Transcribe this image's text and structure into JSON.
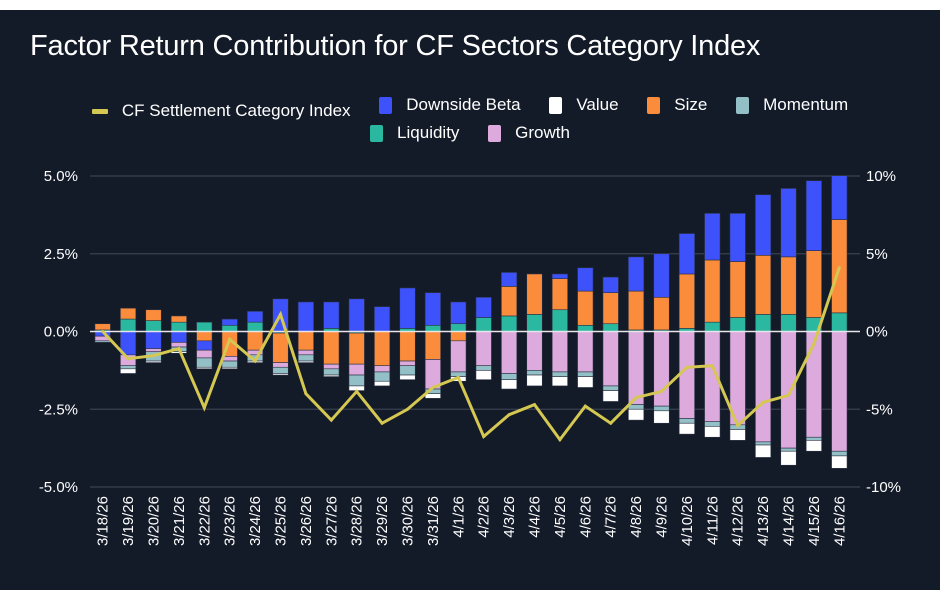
{
  "chart_data": {
    "type": "bar",
    "title": "Factor Return Contribution for CF Sectors Category Index",
    "stacked": true,
    "xlabel": "",
    "ylabel": "",
    "ylim": [
      -5.0,
      5.0
    ],
    "y2lim": [
      -10,
      10
    ],
    "yticks": [
      "5.0%",
      "2.5%",
      "0.0%",
      "-2.5%",
      "-5.0%"
    ],
    "ytick_values": [
      5.0,
      2.5,
      0.0,
      -2.5,
      -5.0
    ],
    "y2ticks": [
      "10%",
      "5%",
      "0%",
      "-5%",
      "-10%"
    ],
    "y2tick_values": [
      10,
      5,
      0,
      -5,
      -10
    ],
    "grid": true,
    "legend_position": "top-center",
    "categories": [
      "3/18/26",
      "3/19/26",
      "3/20/26",
      "3/21/26",
      "3/22/26",
      "3/23/26",
      "3/24/26",
      "3/25/26",
      "3/26/26",
      "3/27/26",
      "3/28/26",
      "3/29/26",
      "3/30/26",
      "3/31/26",
      "4/1/26",
      "4/2/26",
      "4/3/26",
      "4/4/26",
      "4/5/26",
      "4/6/26",
      "4/7/26",
      "4/8/26",
      "4/9/26",
      "4/10/26",
      "4/11/26",
      "4/12/26",
      "4/13/26",
      "4/14/26",
      "4/15/26",
      "4/16/26"
    ],
    "series": [
      {
        "name": "Liquidity",
        "color": "#2ab9a0",
        "values": [
          0.05,
          0.4,
          0.35,
          0.3,
          0.3,
          0.2,
          0.3,
          -0.05,
          0.0,
          0.1,
          -0.05,
          0.0,
          0.1,
          0.2,
          0.25,
          0.45,
          0.5,
          0.55,
          0.7,
          0.2,
          0.25,
          0.05,
          0.05,
          0.1,
          0.3,
          0.45,
          0.55,
          0.55,
          0.45,
          0.6
        ]
      },
      {
        "name": "Size",
        "color": "#fb8c3c",
        "values": [
          0.2,
          0.35,
          0.35,
          0.2,
          -0.3,
          -0.8,
          -0.6,
          -0.95,
          -0.6,
          -1.05,
          -1.0,
          -1.1,
          -0.95,
          -0.9,
          -0.3,
          0.0,
          0.95,
          1.3,
          1.0,
          1.1,
          1.0,
          1.25,
          1.05,
          1.75,
          2.0,
          1.8,
          1.9,
          1.85,
          2.15,
          3.0
        ]
      },
      {
        "name": "Downside Beta",
        "color": "#3d52fa",
        "values": [
          -0.15,
          -0.75,
          -0.55,
          -0.35,
          -0.3,
          0.2,
          0.35,
          1.05,
          0.95,
          0.85,
          1.05,
          0.8,
          1.3,
          1.05,
          0.7,
          0.65,
          0.45,
          0.0,
          0.15,
          0.75,
          0.5,
          1.1,
          1.4,
          1.3,
          1.5,
          1.55,
          1.95,
          2.2,
          2.25,
          2.4
        ]
      },
      {
        "name": "Growth",
        "color": "#dcaadc",
        "values": [
          -0.15,
          -0.35,
          -0.1,
          -0.15,
          -0.25,
          -0.15,
          -0.15,
          -0.15,
          -0.15,
          -0.15,
          -0.35,
          -0.2,
          -0.15,
          -0.95,
          -1.0,
          -1.1,
          -1.35,
          -1.25,
          -1.3,
          -1.3,
          -1.75,
          -2.35,
          -2.4,
          -2.8,
          -2.9,
          -3.0,
          -3.55,
          -3.75,
          -3.4,
          -3.85
        ]
      },
      {
        "name": "Momentum",
        "color": "#93bfc6",
        "values": [
          -0.05,
          -0.1,
          -0.3,
          -0.15,
          -0.3,
          -0.2,
          -0.2,
          -0.2,
          -0.2,
          -0.2,
          -0.35,
          -0.3,
          -0.3,
          -0.15,
          -0.15,
          -0.15,
          -0.2,
          -0.15,
          -0.15,
          -0.15,
          -0.15,
          -0.15,
          -0.15,
          -0.15,
          -0.15,
          -0.15,
          -0.1,
          -0.1,
          -0.1,
          -0.15
        ]
      },
      {
        "name": "Value",
        "color": "#ffffff",
        "values": [
          0.0,
          -0.15,
          -0.05,
          -0.05,
          -0.05,
          -0.05,
          -0.05,
          -0.05,
          -0.05,
          -0.05,
          -0.15,
          -0.15,
          -0.15,
          -0.15,
          -0.15,
          -0.3,
          -0.3,
          -0.35,
          -0.3,
          -0.35,
          -0.35,
          -0.35,
          -0.4,
          -0.35,
          -0.35,
          -0.35,
          -0.4,
          -0.45,
          -0.35,
          -0.4
        ]
      }
    ],
    "line_series": {
      "name": "CF Settlement Category Index",
      "color": "#d4c752",
      "axis": "right",
      "values": [
        0.0,
        -1.75,
        -1.55,
        -1.1,
        -4.9,
        -0.5,
        -1.9,
        1.1,
        -4.0,
        -5.7,
        -3.85,
        -5.9,
        -5.0,
        -3.6,
        -2.95,
        -6.75,
        -5.35,
        -4.7,
        -6.95,
        -4.8,
        -5.9,
        -4.25,
        -3.85,
        -2.3,
        -2.2,
        -6.05,
        -4.55,
        -4.1,
        -0.8,
        4.1
      ]
    }
  },
  "legend": [
    {
      "label": "CF Settlement Category Index",
      "color": "#d4c752",
      "kind": "line"
    },
    {
      "label": "Downside Beta",
      "color": "#3d52fa",
      "kind": "bar"
    },
    {
      "label": "Value",
      "color": "#ffffff",
      "kind": "bar"
    },
    {
      "label": "Size",
      "color": "#fb8c3c",
      "kind": "bar"
    },
    {
      "label": "Momentum",
      "color": "#93bfc6",
      "kind": "bar"
    },
    {
      "label": "Liquidity",
      "color": "#2ab9a0",
      "kind": "bar"
    },
    {
      "label": "Growth",
      "color": "#dcaadc",
      "kind": "bar"
    }
  ],
  "colors": {
    "background": "#131a28",
    "grid": "#3a4150",
    "zero_line": "#e6e6ea",
    "text": "#ffffff"
  }
}
